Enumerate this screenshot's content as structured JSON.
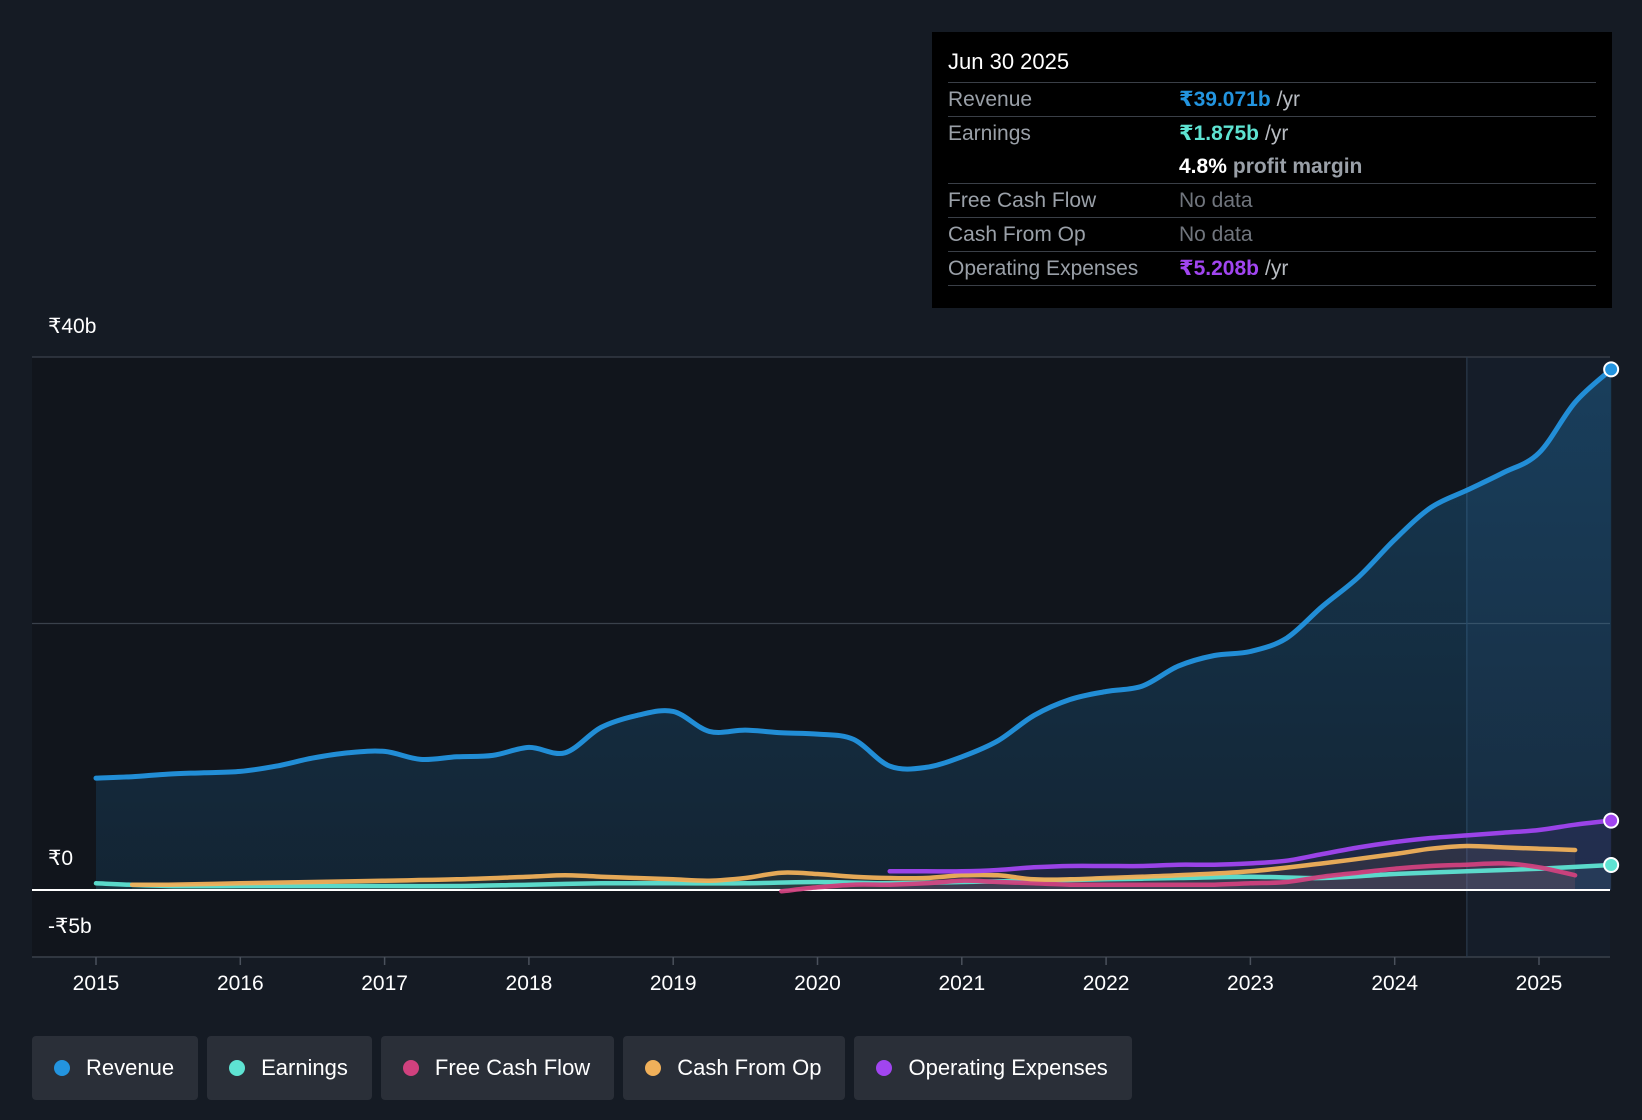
{
  "tooltip": {
    "date": "Jun 30 2025",
    "revenue_label": "Revenue",
    "revenue_value": "₹39.071b",
    "earnings_label": "Earnings",
    "earnings_value": "₹1.875b",
    "profit_margin_value": "4.8%",
    "profit_margin_label": "profit margin",
    "fcf_label": "Free Cash Flow",
    "fcf_value": "No data",
    "cfo_label": "Cash From Op",
    "cfo_value": "No data",
    "opex_label": "Operating Expenses",
    "opex_value": "₹5.208b",
    "unit": "/yr"
  },
  "colors": {
    "revenue": "#2394df",
    "earnings": "#5ee3d2",
    "fcf": "#d0417e",
    "cfo": "#f0b05a",
    "opex": "#a145f0"
  },
  "legend": [
    {
      "key": "revenue",
      "label": "Revenue"
    },
    {
      "key": "earnings",
      "label": "Earnings"
    },
    {
      "key": "fcf",
      "label": "Free Cash Flow"
    },
    {
      "key": "cfo",
      "label": "Cash From Op"
    },
    {
      "key": "opex",
      "label": "Operating Expenses"
    }
  ],
  "chart_data": {
    "type": "area",
    "currency_note": "INR billions",
    "ylim": [
      -5,
      40
    ],
    "xlim": [
      2014.55,
      2025.5
    ],
    "y_tick_labels": [
      {
        "value": 40,
        "label": "₹40b"
      },
      {
        "value": 0,
        "label": "₹0"
      },
      {
        "value": -5,
        "label": "-₹5b"
      }
    ],
    "x_ticks": [
      {
        "value": 2015,
        "label": "2015"
      },
      {
        "value": 2016,
        "label": "2016"
      },
      {
        "value": 2017,
        "label": "2017"
      },
      {
        "value": 2018,
        "label": "2018"
      },
      {
        "value": 2019,
        "label": "2019"
      },
      {
        "value": 2020,
        "label": "2020"
      },
      {
        "value": 2021,
        "label": "2021"
      },
      {
        "value": 2022,
        "label": "2022"
      },
      {
        "value": 2023,
        "label": "2023"
      },
      {
        "value": 2024,
        "label": "2024"
      },
      {
        "value": 2025,
        "label": "2025"
      }
    ],
    "highlight_start": 2024.5,
    "series": [
      {
        "key": "revenue",
        "name": "Revenue",
        "x": [
          2015.0,
          2015.25,
          2015.5,
          2015.75,
          2016.0,
          2016.25,
          2016.5,
          2016.75,
          2017.0,
          2017.25,
          2017.5,
          2017.75,
          2018.0,
          2018.25,
          2018.5,
          2018.75,
          2019.0,
          2019.25,
          2019.5,
          2019.75,
          2020.0,
          2020.25,
          2020.5,
          2020.75,
          2021.0,
          2021.25,
          2021.5,
          2021.75,
          2022.0,
          2022.25,
          2022.5,
          2022.75,
          2023.0,
          2023.25,
          2023.5,
          2023.75,
          2024.0,
          2024.25,
          2024.5,
          2024.75,
          2025.0,
          2025.25,
          2025.5
        ],
        "values": [
          8.4,
          8.5,
          8.7,
          8.8,
          8.9,
          9.3,
          9.9,
          10.3,
          10.4,
          9.8,
          10.0,
          10.1,
          10.7,
          10.3,
          12.2,
          13.1,
          13.4,
          11.9,
          12.0,
          11.8,
          11.7,
          11.3,
          9.3,
          9.2,
          10.0,
          11.2,
          13.1,
          14.3,
          14.9,
          15.3,
          16.8,
          17.6,
          17.9,
          18.9,
          21.3,
          23.5,
          26.3,
          28.7,
          30.0,
          31.3,
          32.8,
          36.6,
          39.071
        ]
      },
      {
        "key": "earnings",
        "name": "Earnings",
        "x": [
          2015.0,
          2015.5,
          2016.0,
          2016.5,
          2017.0,
          2017.5,
          2018.0,
          2018.5,
          2019.0,
          2019.5,
          2020.0,
          2020.5,
          2021.0,
          2021.5,
          2022.0,
          2022.5,
          2023.0,
          2023.5,
          2024.0,
          2024.5,
          2025.0,
          2025.5
        ],
        "values": [
          0.5,
          0.3,
          0.3,
          0.3,
          0.3,
          0.3,
          0.4,
          0.5,
          0.5,
          0.5,
          0.6,
          0.5,
          0.6,
          0.7,
          0.8,
          0.9,
          1.0,
          0.9,
          1.2,
          1.4,
          1.6,
          1.875
        ]
      },
      {
        "key": "fcf",
        "name": "Free Cash Flow",
        "x": [
          2019.75,
          2020.0,
          2020.25,
          2020.5,
          2020.75,
          2021.0,
          2021.25,
          2021.5,
          2021.75,
          2022.0,
          2022.25,
          2022.5,
          2022.75,
          2023.0,
          2023.25,
          2023.5,
          2023.75,
          2024.0,
          2024.25,
          2024.5,
          2024.75,
          2025.0,
          2025.25
        ],
        "values": [
          -0.1,
          0.2,
          0.4,
          0.4,
          0.5,
          0.7,
          0.6,
          0.5,
          0.4,
          0.4,
          0.4,
          0.4,
          0.4,
          0.5,
          0.6,
          1.0,
          1.3,
          1.6,
          1.8,
          1.9,
          2.0,
          1.7,
          1.1
        ]
      },
      {
        "key": "cfo",
        "name": "Cash From Op",
        "x": [
          2015.25,
          2015.5,
          2016.0,
          2016.5,
          2017.0,
          2017.5,
          2018.0,
          2018.25,
          2018.5,
          2018.75,
          2019.0,
          2019.25,
          2019.5,
          2019.75,
          2020.0,
          2020.25,
          2020.5,
          2020.75,
          2021.0,
          2021.25,
          2021.5,
          2021.75,
          2022.0,
          2022.5,
          2023.0,
          2023.5,
          2024.0,
          2024.25,
          2024.5,
          2024.75,
          2025.0,
          2025.25
        ],
        "values": [
          0.4,
          0.4,
          0.5,
          0.6,
          0.7,
          0.8,
          1.0,
          1.1,
          1.0,
          0.9,
          0.8,
          0.7,
          0.9,
          1.3,
          1.2,
          1.0,
          0.9,
          0.9,
          1.1,
          1.1,
          0.8,
          0.8,
          0.9,
          1.1,
          1.4,
          2.0,
          2.7,
          3.1,
          3.3,
          3.2,
          3.1,
          3.0
        ]
      },
      {
        "key": "opex",
        "name": "Operating Expenses",
        "x": [
          2020.5,
          2020.75,
          2021.0,
          2021.25,
          2021.5,
          2021.75,
          2022.0,
          2022.25,
          2022.5,
          2022.75,
          2023.0,
          2023.25,
          2023.5,
          2023.75,
          2024.0,
          2024.25,
          2024.5,
          2024.75,
          2025.0,
          2025.25,
          2025.5
        ],
        "values": [
          1.4,
          1.4,
          1.4,
          1.5,
          1.7,
          1.8,
          1.8,
          1.8,
          1.9,
          1.9,
          2.0,
          2.2,
          2.7,
          3.2,
          3.6,
          3.9,
          4.1,
          4.3,
          4.5,
          4.9,
          5.208
        ]
      }
    ]
  }
}
